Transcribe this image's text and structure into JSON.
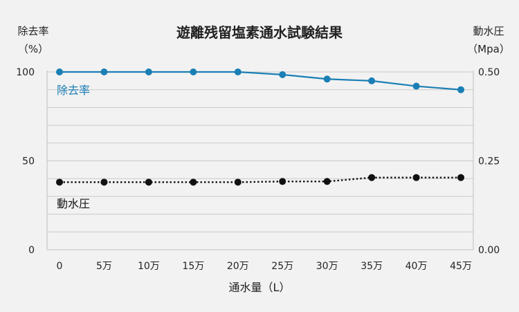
{
  "chart_data": {
    "type": "line",
    "title": "遊離残留塩素通水試験結果",
    "xlabel": "通水量（L）",
    "categories": [
      "0",
      "5万",
      "10万",
      "15万",
      "20万",
      "25万",
      "30万",
      "35万",
      "40万",
      "45万"
    ],
    "y_left": {
      "label_line1": "除去率",
      "label_line2": "（%）",
      "ticks": [
        "0",
        "50",
        "100"
      ],
      "lim": [
        0,
        100
      ]
    },
    "y_right": {
      "label_line1": "動水圧",
      "label_line2": "（Mpa）",
      "ticks": [
        "0.00",
        "0.25",
        "0.50"
      ],
      "lim": [
        0,
        0.5
      ]
    },
    "grid": true,
    "series": [
      {
        "name": "除去率",
        "axis": "left",
        "style": "solid",
        "color": "#1a7fb5",
        "values": [
          100,
          100,
          100,
          100,
          100,
          98.5,
          96,
          95,
          92,
          90
        ]
      },
      {
        "name": "動水圧",
        "axis": "right",
        "style": "dotted",
        "color": "#111111",
        "values": [
          0.19,
          0.19,
          0.19,
          0.19,
          0.19,
          0.192,
          0.192,
          0.203,
          0.203,
          0.203
        ]
      }
    ]
  }
}
